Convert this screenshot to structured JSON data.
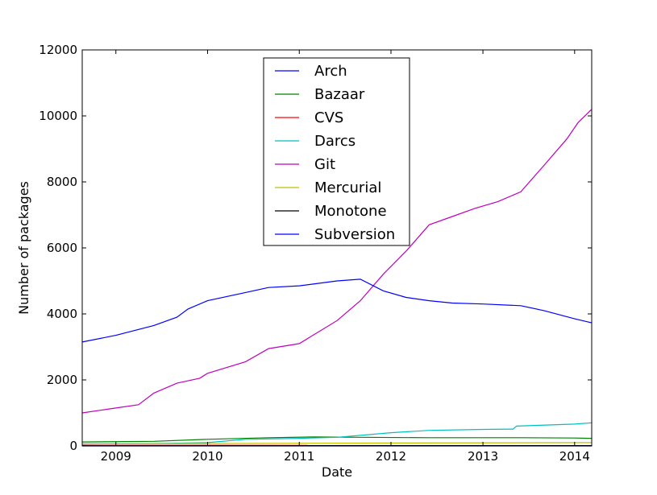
{
  "chart_data": {
    "type": "line",
    "title": "",
    "xlabel": "Date",
    "ylabel": "Number of packages",
    "xlim": [
      "2008-08-20",
      "2014-03-10"
    ],
    "ylim": [
      0,
      12000
    ],
    "x_ticks": [
      "2009",
      "2010",
      "2011",
      "2012",
      "2013",
      "2014"
    ],
    "y_ticks": [
      "0",
      "2000",
      "4000",
      "6000",
      "8000",
      "10000",
      "12000"
    ],
    "grid": false,
    "legend_position": "upper-center",
    "series": [
      {
        "name": "Arch",
        "color": "#0000ff",
        "points": [
          [
            "2008-08-20",
            0
          ],
          [
            "2014-03-10",
            0
          ]
        ]
      },
      {
        "name": "Bazaar",
        "color": "#008000",
        "points": [
          [
            "2008-08-20",
            120
          ],
          [
            "2009-06-01",
            140
          ],
          [
            "2010-01-01",
            200
          ],
          [
            "2010-09-01",
            250
          ],
          [
            "2011-03-01",
            270
          ],
          [
            "2011-09-01",
            260
          ],
          [
            "2012-06-01",
            250
          ],
          [
            "2013-06-01",
            250
          ],
          [
            "2014-01-01",
            240
          ],
          [
            "2014-03-10",
            230
          ]
        ]
      },
      {
        "name": "CVS",
        "color": "#ff0000",
        "points": [
          [
            "2008-08-20",
            20
          ],
          [
            "2014-03-10",
            15
          ]
        ]
      },
      {
        "name": "Darcs",
        "color": "#00bfbf",
        "points": [
          [
            "2008-08-20",
            60
          ],
          [
            "2009-06-01",
            70
          ],
          [
            "2010-01-01",
            100
          ],
          [
            "2010-06-01",
            200
          ],
          [
            "2011-01-01",
            230
          ],
          [
            "2011-06-01",
            260
          ],
          [
            "2012-01-01",
            400
          ],
          [
            "2012-06-01",
            470
          ],
          [
            "2013-01-01",
            500
          ],
          [
            "2013-05-01",
            510
          ],
          [
            "2013-05-15",
            600
          ],
          [
            "2014-01-01",
            660
          ],
          [
            "2014-03-10",
            700
          ]
        ]
      },
      {
        "name": "Git",
        "color": "#bf00bf",
        "points": [
          [
            "2008-08-20",
            1000
          ],
          [
            "2009-01-01",
            1150
          ],
          [
            "2009-04-01",
            1250
          ],
          [
            "2009-06-01",
            1600
          ],
          [
            "2009-09-01",
            1900
          ],
          [
            "2009-12-01",
            2050
          ],
          [
            "2010-01-01",
            2200
          ],
          [
            "2010-06-01",
            2550
          ],
          [
            "2010-09-01",
            2950
          ],
          [
            "2011-01-01",
            3100
          ],
          [
            "2011-06-01",
            3800
          ],
          [
            "2011-09-01",
            4400
          ],
          [
            "2011-12-01",
            5200
          ],
          [
            "2012-03-01",
            5900
          ],
          [
            "2012-06-01",
            6700
          ],
          [
            "2012-09-01",
            6950
          ],
          [
            "2012-12-01",
            7200
          ],
          [
            "2013-03-01",
            7400
          ],
          [
            "2013-06-01",
            7700
          ],
          [
            "2013-09-01",
            8500
          ],
          [
            "2013-12-01",
            9300
          ],
          [
            "2014-01-15",
            9800
          ],
          [
            "2014-03-10",
            10200
          ]
        ]
      },
      {
        "name": "Mercurial",
        "color": "#bfbf00",
        "points": [
          [
            "2008-08-20",
            60
          ],
          [
            "2011-01-01",
            80
          ],
          [
            "2014-03-10",
            100
          ]
        ]
      },
      {
        "name": "Monotone",
        "color": "#000000",
        "points": [
          [
            "2008-08-20",
            10
          ],
          [
            "2014-03-10",
            10
          ]
        ]
      },
      {
        "name": "Subversion",
        "color": "#0000ff",
        "points": [
          [
            "2008-08-20",
            3150
          ],
          [
            "2009-01-01",
            3350
          ],
          [
            "2009-06-01",
            3650
          ],
          [
            "2009-09-01",
            3900
          ],
          [
            "2009-10-15",
            4150
          ],
          [
            "2010-01-01",
            4400
          ],
          [
            "2010-06-01",
            4650
          ],
          [
            "2010-09-01",
            4800
          ],
          [
            "2011-01-01",
            4850
          ],
          [
            "2011-06-01",
            5000
          ],
          [
            "2011-09-01",
            5050
          ],
          [
            "2011-12-01",
            4700
          ],
          [
            "2012-03-01",
            4500
          ],
          [
            "2012-06-01",
            4400
          ],
          [
            "2012-09-01",
            4330
          ],
          [
            "2013-01-01",
            4300
          ],
          [
            "2013-06-01",
            4250
          ],
          [
            "2013-09-01",
            4100
          ],
          [
            "2014-01-01",
            3850
          ],
          [
            "2014-03-10",
            3730
          ]
        ]
      }
    ]
  }
}
